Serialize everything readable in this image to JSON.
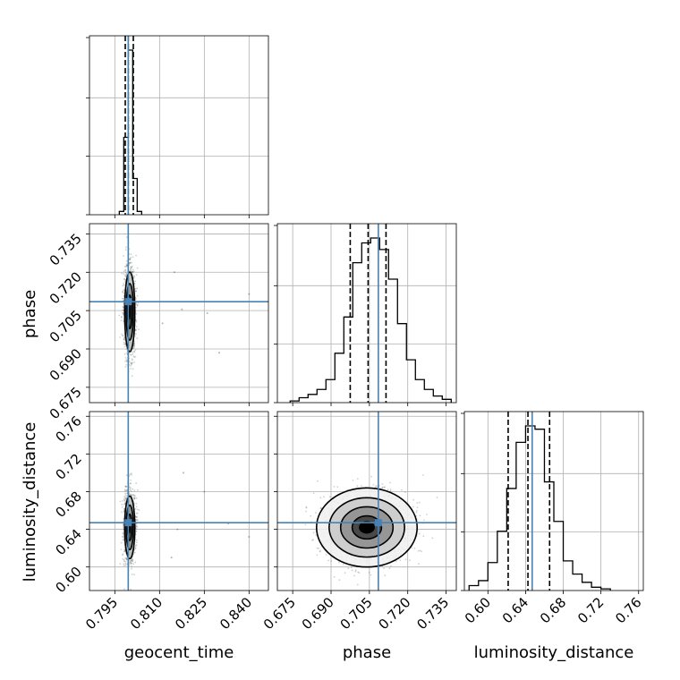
{
  "chart_data": {
    "type": "corner",
    "parameters": [
      "geocent_time",
      "phase",
      "luminosity_distance"
    ],
    "axis_labels": {
      "geocent_time": "geocent_time",
      "phase": "phase",
      "luminosity_distance": "luminosity_distance"
    },
    "ticks": {
      "geocent_time": [
        "0.795",
        "0.810",
        "0.825",
        "0.840"
      ],
      "phase": [
        "0.675",
        "0.690",
        "0.705",
        "0.720",
        "0.735"
      ],
      "luminosity_distance": [
        "0.60",
        "0.64",
        "0.68",
        "0.72",
        "0.76"
      ]
    },
    "ranges": {
      "geocent_time": [
        0.7865,
        0.8465
      ],
      "phase": [
        0.669,
        0.739
      ],
      "luminosity_distance": [
        0.575,
        0.765
      ]
    },
    "injection": {
      "geocent_time": 0.7995,
      "phase": 0.7085,
      "luminosity_distance": 0.647
    },
    "quantiles": {
      "geocent_time": [
        0.7985,
        0.7995,
        0.8012
      ],
      "phase": [
        0.6975,
        0.7045,
        0.7115
      ],
      "luminosity_distance": [
        0.6215,
        0.6425,
        0.6655
      ]
    },
    "histograms": {
      "geocent_time": {
        "bins": [
          0.7965,
          0.798,
          0.7995,
          0.801,
          0.8025,
          0.804
        ],
        "counts": [
          0.02,
          0.47,
          1.0,
          0.22,
          0.02
        ]
      },
      "phase": {
        "bins": [
          0.674,
          0.6775,
          0.681,
          0.6845,
          0.688,
          0.6915,
          0.695,
          0.6985,
          0.702,
          0.7055,
          0.709,
          0.7125,
          0.716,
          0.7195,
          0.723,
          0.7265,
          0.73,
          0.7335,
          0.737
        ],
        "counts": [
          0.01,
          0.03,
          0.05,
          0.08,
          0.14,
          0.3,
          0.52,
          0.85,
          0.97,
          1.0,
          0.93,
          0.75,
          0.48,
          0.26,
          0.14,
          0.08,
          0.04,
          0.02
        ]
      },
      "luminosity_distance": {
        "bins": [
          0.58,
          0.59,
          0.6,
          0.61,
          0.62,
          0.63,
          0.64,
          0.65,
          0.66,
          0.67,
          0.68,
          0.69,
          0.7,
          0.71,
          0.72,
          0.73
        ],
        "counts": [
          0.03,
          0.06,
          0.17,
          0.36,
          0.62,
          0.9,
          1.0,
          0.98,
          0.66,
          0.42,
          0.18,
          0.1,
          0.05,
          0.02,
          0.01
        ]
      }
    },
    "pairs": [
      {
        "x": "geocent_time",
        "y": "phase",
        "center": [
          0.8,
          0.7045
        ],
        "sigma": [
          0.0009,
          0.0082
        ],
        "levels": [
          0.8,
          1.35,
          1.9
        ],
        "outliers": [
          [
            0.8175,
            0.7055
          ],
          [
            0.826,
            0.704
          ],
          [
            0.84,
            0.7115
          ],
          [
            0.811,
            0.7
          ],
          [
            0.83,
            0.6885
          ],
          [
            0.815,
            0.72
          ]
        ]
      },
      {
        "x": "geocent_time",
        "y": "luminosity_distance",
        "center": [
          0.8,
          0.642
        ],
        "sigma": [
          0.0009,
          0.0175
        ],
        "levels": [
          0.8,
          1.35,
          1.9
        ],
        "outliers": [
          [
            0.816,
            0.64
          ],
          [
            0.825,
            0.68
          ],
          [
            0.833,
            0.646
          ],
          [
            0.84,
            0.632
          ],
          [
            0.814,
            0.61
          ],
          [
            0.818,
            0.7
          ]
        ]
      },
      {
        "x": "phase",
        "y": "luminosity_distance",
        "center": [
          0.704,
          0.642
        ],
        "sigma": [
          0.0082,
          0.0175
        ],
        "levels": [
          0.7,
          1.25,
          1.8,
          2.4
        ],
        "outliers": []
      }
    ]
  }
}
